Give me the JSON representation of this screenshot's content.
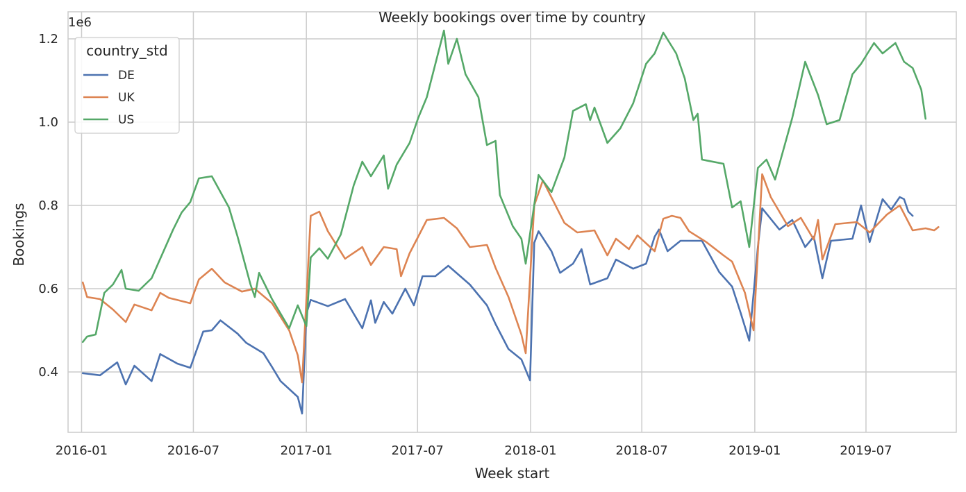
{
  "chart_data": {
    "type": "line",
    "title": "Weekly bookings over time by country",
    "xlabel": "Week start",
    "ylabel": "Bookings",
    "y_offset_label": "1e6",
    "x_ticks": [
      "2016-01",
      "2016-07",
      "2017-01",
      "2017-07",
      "2018-01",
      "2018-07",
      "2019-01",
      "2019-07"
    ],
    "y_ticks": [
      "0.4",
      "0.6",
      "0.8",
      "1.0",
      "1.2"
    ],
    "y_tick_values": [
      0.4,
      0.6,
      0.8,
      1.0,
      1.2
    ],
    "ylim": [
      0.255,
      1.265
    ],
    "xlim": [
      "2015-12-10",
      "2019-11-25"
    ],
    "grid": true,
    "legend": {
      "title": "country_std",
      "placement": "upper left"
    },
    "series": [
      {
        "name": "DE",
        "color": "#4c72b0",
        "points": [
          [
            "2016-01-03",
            0.397
          ],
          [
            "2016-01-31",
            0.392
          ],
          [
            "2016-02-28",
            0.423
          ],
          [
            "2016-03-13",
            0.37
          ],
          [
            "2016-03-27",
            0.415
          ],
          [
            "2016-04-24",
            0.378
          ],
          [
            "2016-05-08",
            0.443
          ],
          [
            "2016-06-05",
            0.42
          ],
          [
            "2016-06-26",
            0.41
          ],
          [
            "2016-07-17",
            0.497
          ],
          [
            "2016-07-31",
            0.5
          ],
          [
            "2016-08-14",
            0.524
          ],
          [
            "2016-09-11",
            0.492
          ],
          [
            "2016-09-25",
            0.47
          ],
          [
            "2016-10-23",
            0.445
          ],
          [
            "2016-11-06",
            0.412
          ],
          [
            "2016-11-20",
            0.378
          ],
          [
            "2016-12-18",
            0.34
          ],
          [
            "2016-12-25",
            0.3
          ],
          [
            "2017-01-01",
            0.54
          ],
          [
            "2017-01-08",
            0.573
          ],
          [
            "2017-02-05",
            0.558
          ],
          [
            "2017-03-05",
            0.575
          ],
          [
            "2017-04-02",
            0.505
          ],
          [
            "2017-04-16",
            0.572
          ],
          [
            "2017-04-23",
            0.518
          ],
          [
            "2017-05-07",
            0.568
          ],
          [
            "2017-05-21",
            0.54
          ],
          [
            "2017-06-11",
            0.6
          ],
          [
            "2017-06-25",
            0.56
          ],
          [
            "2017-07-09",
            0.63
          ],
          [
            "2017-07-30",
            0.63
          ],
          [
            "2017-08-20",
            0.655
          ],
          [
            "2017-09-24",
            0.61
          ],
          [
            "2017-10-22",
            0.56
          ],
          [
            "2017-11-05",
            0.515
          ],
          [
            "2017-11-26",
            0.455
          ],
          [
            "2017-12-17",
            0.43
          ],
          [
            "2017-12-31",
            0.38
          ],
          [
            "2018-01-07",
            0.71
          ],
          [
            "2018-01-14",
            0.738
          ],
          [
            "2018-02-04",
            0.69
          ],
          [
            "2018-02-18",
            0.638
          ],
          [
            "2018-03-11",
            0.66
          ],
          [
            "2018-03-25",
            0.695
          ],
          [
            "2018-04-08",
            0.61
          ],
          [
            "2018-05-06",
            0.625
          ],
          [
            "2018-05-20",
            0.67
          ],
          [
            "2018-06-17",
            0.648
          ],
          [
            "2018-07-08",
            0.66
          ],
          [
            "2018-07-22",
            0.725
          ],
          [
            "2018-07-29",
            0.742
          ],
          [
            "2018-08-12",
            0.69
          ],
          [
            "2018-09-02",
            0.715
          ],
          [
            "2018-10-07",
            0.715
          ],
          [
            "2018-11-04",
            0.64
          ],
          [
            "2018-11-25",
            0.605
          ],
          [
            "2018-12-09",
            0.542
          ],
          [
            "2018-12-23",
            0.475
          ],
          [
            "2019-01-06",
            0.7
          ],
          [
            "2019-01-13",
            0.793
          ],
          [
            "2019-02-10",
            0.742
          ],
          [
            "2019-03-03",
            0.765
          ],
          [
            "2019-03-24",
            0.7
          ],
          [
            "2019-04-07",
            0.725
          ],
          [
            "2019-04-21",
            0.625
          ],
          [
            "2019-05-05",
            0.715
          ],
          [
            "2019-06-09",
            0.72
          ],
          [
            "2019-06-23",
            0.8
          ],
          [
            "2019-07-07",
            0.712
          ],
          [
            "2019-07-28",
            0.815
          ],
          [
            "2019-08-11",
            0.79
          ],
          [
            "2019-08-25",
            0.82
          ],
          [
            "2019-09-01",
            0.815
          ],
          [
            "2019-09-08",
            0.785
          ],
          [
            "2019-09-15",
            0.775
          ]
        ]
      },
      {
        "name": "UK",
        "color": "#dd8452",
        "points": [
          [
            "2016-01-03",
            0.615
          ],
          [
            "2016-01-10",
            0.58
          ],
          [
            "2016-01-31",
            0.575
          ],
          [
            "2016-02-21",
            0.55
          ],
          [
            "2016-03-13",
            0.52
          ],
          [
            "2016-03-27",
            0.562
          ],
          [
            "2016-04-24",
            0.548
          ],
          [
            "2016-05-08",
            0.59
          ],
          [
            "2016-05-22",
            0.578
          ],
          [
            "2016-06-26",
            0.565
          ],
          [
            "2016-07-10",
            0.622
          ],
          [
            "2016-07-31",
            0.648
          ],
          [
            "2016-08-21",
            0.615
          ],
          [
            "2016-09-18",
            0.593
          ],
          [
            "2016-10-09",
            0.6
          ],
          [
            "2016-11-06",
            0.565
          ],
          [
            "2016-12-04",
            0.5
          ],
          [
            "2016-12-18",
            0.44
          ],
          [
            "2016-12-25",
            0.375
          ],
          [
            "2017-01-08",
            0.775
          ],
          [
            "2017-01-22",
            0.785
          ],
          [
            "2017-02-05",
            0.738
          ],
          [
            "2017-03-05",
            0.672
          ],
          [
            "2017-04-02",
            0.7
          ],
          [
            "2017-04-16",
            0.657
          ],
          [
            "2017-05-07",
            0.7
          ],
          [
            "2017-05-28",
            0.695
          ],
          [
            "2017-06-04",
            0.63
          ],
          [
            "2017-06-18",
            0.685
          ],
          [
            "2017-07-16",
            0.765
          ],
          [
            "2017-08-13",
            0.77
          ],
          [
            "2017-09-03",
            0.745
          ],
          [
            "2017-09-24",
            0.7
          ],
          [
            "2017-10-22",
            0.705
          ],
          [
            "2017-11-05",
            0.65
          ],
          [
            "2017-11-26",
            0.58
          ],
          [
            "2017-12-17",
            0.49
          ],
          [
            "2017-12-24",
            0.445
          ],
          [
            "2018-01-07",
            0.8
          ],
          [
            "2018-01-21",
            0.86
          ],
          [
            "2018-02-25",
            0.758
          ],
          [
            "2018-03-18",
            0.735
          ],
          [
            "2018-04-15",
            0.74
          ],
          [
            "2018-05-06",
            0.68
          ],
          [
            "2018-05-20",
            0.72
          ],
          [
            "2018-06-10",
            0.695
          ],
          [
            "2018-06-24",
            0.728
          ],
          [
            "2018-07-22",
            0.69
          ],
          [
            "2018-08-05",
            0.768
          ],
          [
            "2018-08-19",
            0.775
          ],
          [
            "2018-09-02",
            0.77
          ],
          [
            "2018-09-16",
            0.738
          ],
          [
            "2018-10-14",
            0.712
          ],
          [
            "2018-11-11",
            0.68
          ],
          [
            "2018-11-25",
            0.665
          ],
          [
            "2018-12-16",
            0.59
          ],
          [
            "2018-12-30",
            0.5
          ],
          [
            "2019-01-13",
            0.875
          ],
          [
            "2019-01-27",
            0.82
          ],
          [
            "2019-02-24",
            0.75
          ],
          [
            "2019-03-17",
            0.77
          ],
          [
            "2019-04-07",
            0.718
          ],
          [
            "2019-04-14",
            0.765
          ],
          [
            "2019-04-21",
            0.67
          ],
          [
            "2019-05-12",
            0.755
          ],
          [
            "2019-06-16",
            0.76
          ],
          [
            "2019-07-07",
            0.735
          ],
          [
            "2019-08-04",
            0.778
          ],
          [
            "2019-08-25",
            0.8
          ],
          [
            "2019-09-15",
            0.74
          ],
          [
            "2019-10-06",
            0.745
          ],
          [
            "2019-10-20",
            0.74
          ],
          [
            "2019-10-27",
            0.748
          ]
        ]
      },
      {
        "name": "US",
        "color": "#55a868",
        "points": [
          [
            "2016-01-03",
            0.472
          ],
          [
            "2016-01-10",
            0.485
          ],
          [
            "2016-01-24",
            0.49
          ],
          [
            "2016-02-07",
            0.59
          ],
          [
            "2016-02-21",
            0.61
          ],
          [
            "2016-03-06",
            0.645
          ],
          [
            "2016-03-13",
            0.6
          ],
          [
            "2016-04-03",
            0.595
          ],
          [
            "2016-04-24",
            0.625
          ],
          [
            "2016-05-29",
            0.742
          ],
          [
            "2016-06-12",
            0.783
          ],
          [
            "2016-06-26",
            0.808
          ],
          [
            "2016-07-10",
            0.865
          ],
          [
            "2016-07-31",
            0.87
          ],
          [
            "2016-08-28",
            0.795
          ],
          [
            "2016-09-11",
            0.725
          ],
          [
            "2016-10-02",
            0.61
          ],
          [
            "2016-10-09",
            0.58
          ],
          [
            "2016-10-16",
            0.638
          ],
          [
            "2016-11-06",
            0.575
          ],
          [
            "2016-12-04",
            0.505
          ],
          [
            "2016-12-18",
            0.56
          ],
          [
            "2017-01-01",
            0.51
          ],
          [
            "2017-01-08",
            0.675
          ],
          [
            "2017-01-22",
            0.697
          ],
          [
            "2017-02-05",
            0.672
          ],
          [
            "2017-02-26",
            0.73
          ],
          [
            "2017-03-19",
            0.848
          ],
          [
            "2017-04-02",
            0.905
          ],
          [
            "2017-04-16",
            0.87
          ],
          [
            "2017-05-07",
            0.92
          ],
          [
            "2017-05-14",
            0.84
          ],
          [
            "2017-05-28",
            0.898
          ],
          [
            "2017-06-18",
            0.95
          ],
          [
            "2017-07-02",
            1.01
          ],
          [
            "2017-07-16",
            1.06
          ],
          [
            "2017-08-06",
            1.18
          ],
          [
            "2017-08-13",
            1.22
          ],
          [
            "2017-08-20",
            1.14
          ],
          [
            "2017-09-03",
            1.2
          ],
          [
            "2017-09-17",
            1.115
          ],
          [
            "2017-10-08",
            1.06
          ],
          [
            "2017-10-22",
            0.945
          ],
          [
            "2017-11-05",
            0.955
          ],
          [
            "2017-11-12",
            0.825
          ],
          [
            "2017-12-03",
            0.75
          ],
          [
            "2017-12-17",
            0.72
          ],
          [
            "2017-12-24",
            0.66
          ],
          [
            "2018-01-14",
            0.873
          ],
          [
            "2018-02-04",
            0.832
          ],
          [
            "2018-02-25",
            0.915
          ],
          [
            "2018-03-11",
            1.027
          ],
          [
            "2018-04-01",
            1.043
          ],
          [
            "2018-04-08",
            1.005
          ],
          [
            "2018-04-15",
            1.035
          ],
          [
            "2018-05-06",
            0.95
          ],
          [
            "2018-05-27",
            0.985
          ],
          [
            "2018-06-17",
            1.045
          ],
          [
            "2018-07-08",
            1.14
          ],
          [
            "2018-07-22",
            1.165
          ],
          [
            "2018-08-05",
            1.215
          ],
          [
            "2018-08-26",
            1.165
          ],
          [
            "2018-09-09",
            1.105
          ],
          [
            "2018-09-23",
            1.005
          ],
          [
            "2018-09-30",
            1.02
          ],
          [
            "2018-10-07",
            0.91
          ],
          [
            "2018-11-11",
            0.9
          ],
          [
            "2018-11-25",
            0.795
          ],
          [
            "2018-12-09",
            0.81
          ],
          [
            "2018-12-23",
            0.7
          ],
          [
            "2019-01-06",
            0.89
          ],
          [
            "2019-01-20",
            0.91
          ],
          [
            "2019-02-03",
            0.862
          ],
          [
            "2019-03-03",
            1.01
          ],
          [
            "2019-03-24",
            1.145
          ],
          [
            "2019-04-14",
            1.065
          ],
          [
            "2019-04-28",
            0.995
          ],
          [
            "2019-05-19",
            1.005
          ],
          [
            "2019-06-09",
            1.115
          ],
          [
            "2019-06-23",
            1.14
          ],
          [
            "2019-07-14",
            1.19
          ],
          [
            "2019-07-28",
            1.165
          ],
          [
            "2019-08-18",
            1.19
          ],
          [
            "2019-09-01",
            1.145
          ],
          [
            "2019-09-15",
            1.13
          ],
          [
            "2019-09-29",
            1.078
          ],
          [
            "2019-10-06",
            1.008
          ]
        ]
      }
    ]
  }
}
